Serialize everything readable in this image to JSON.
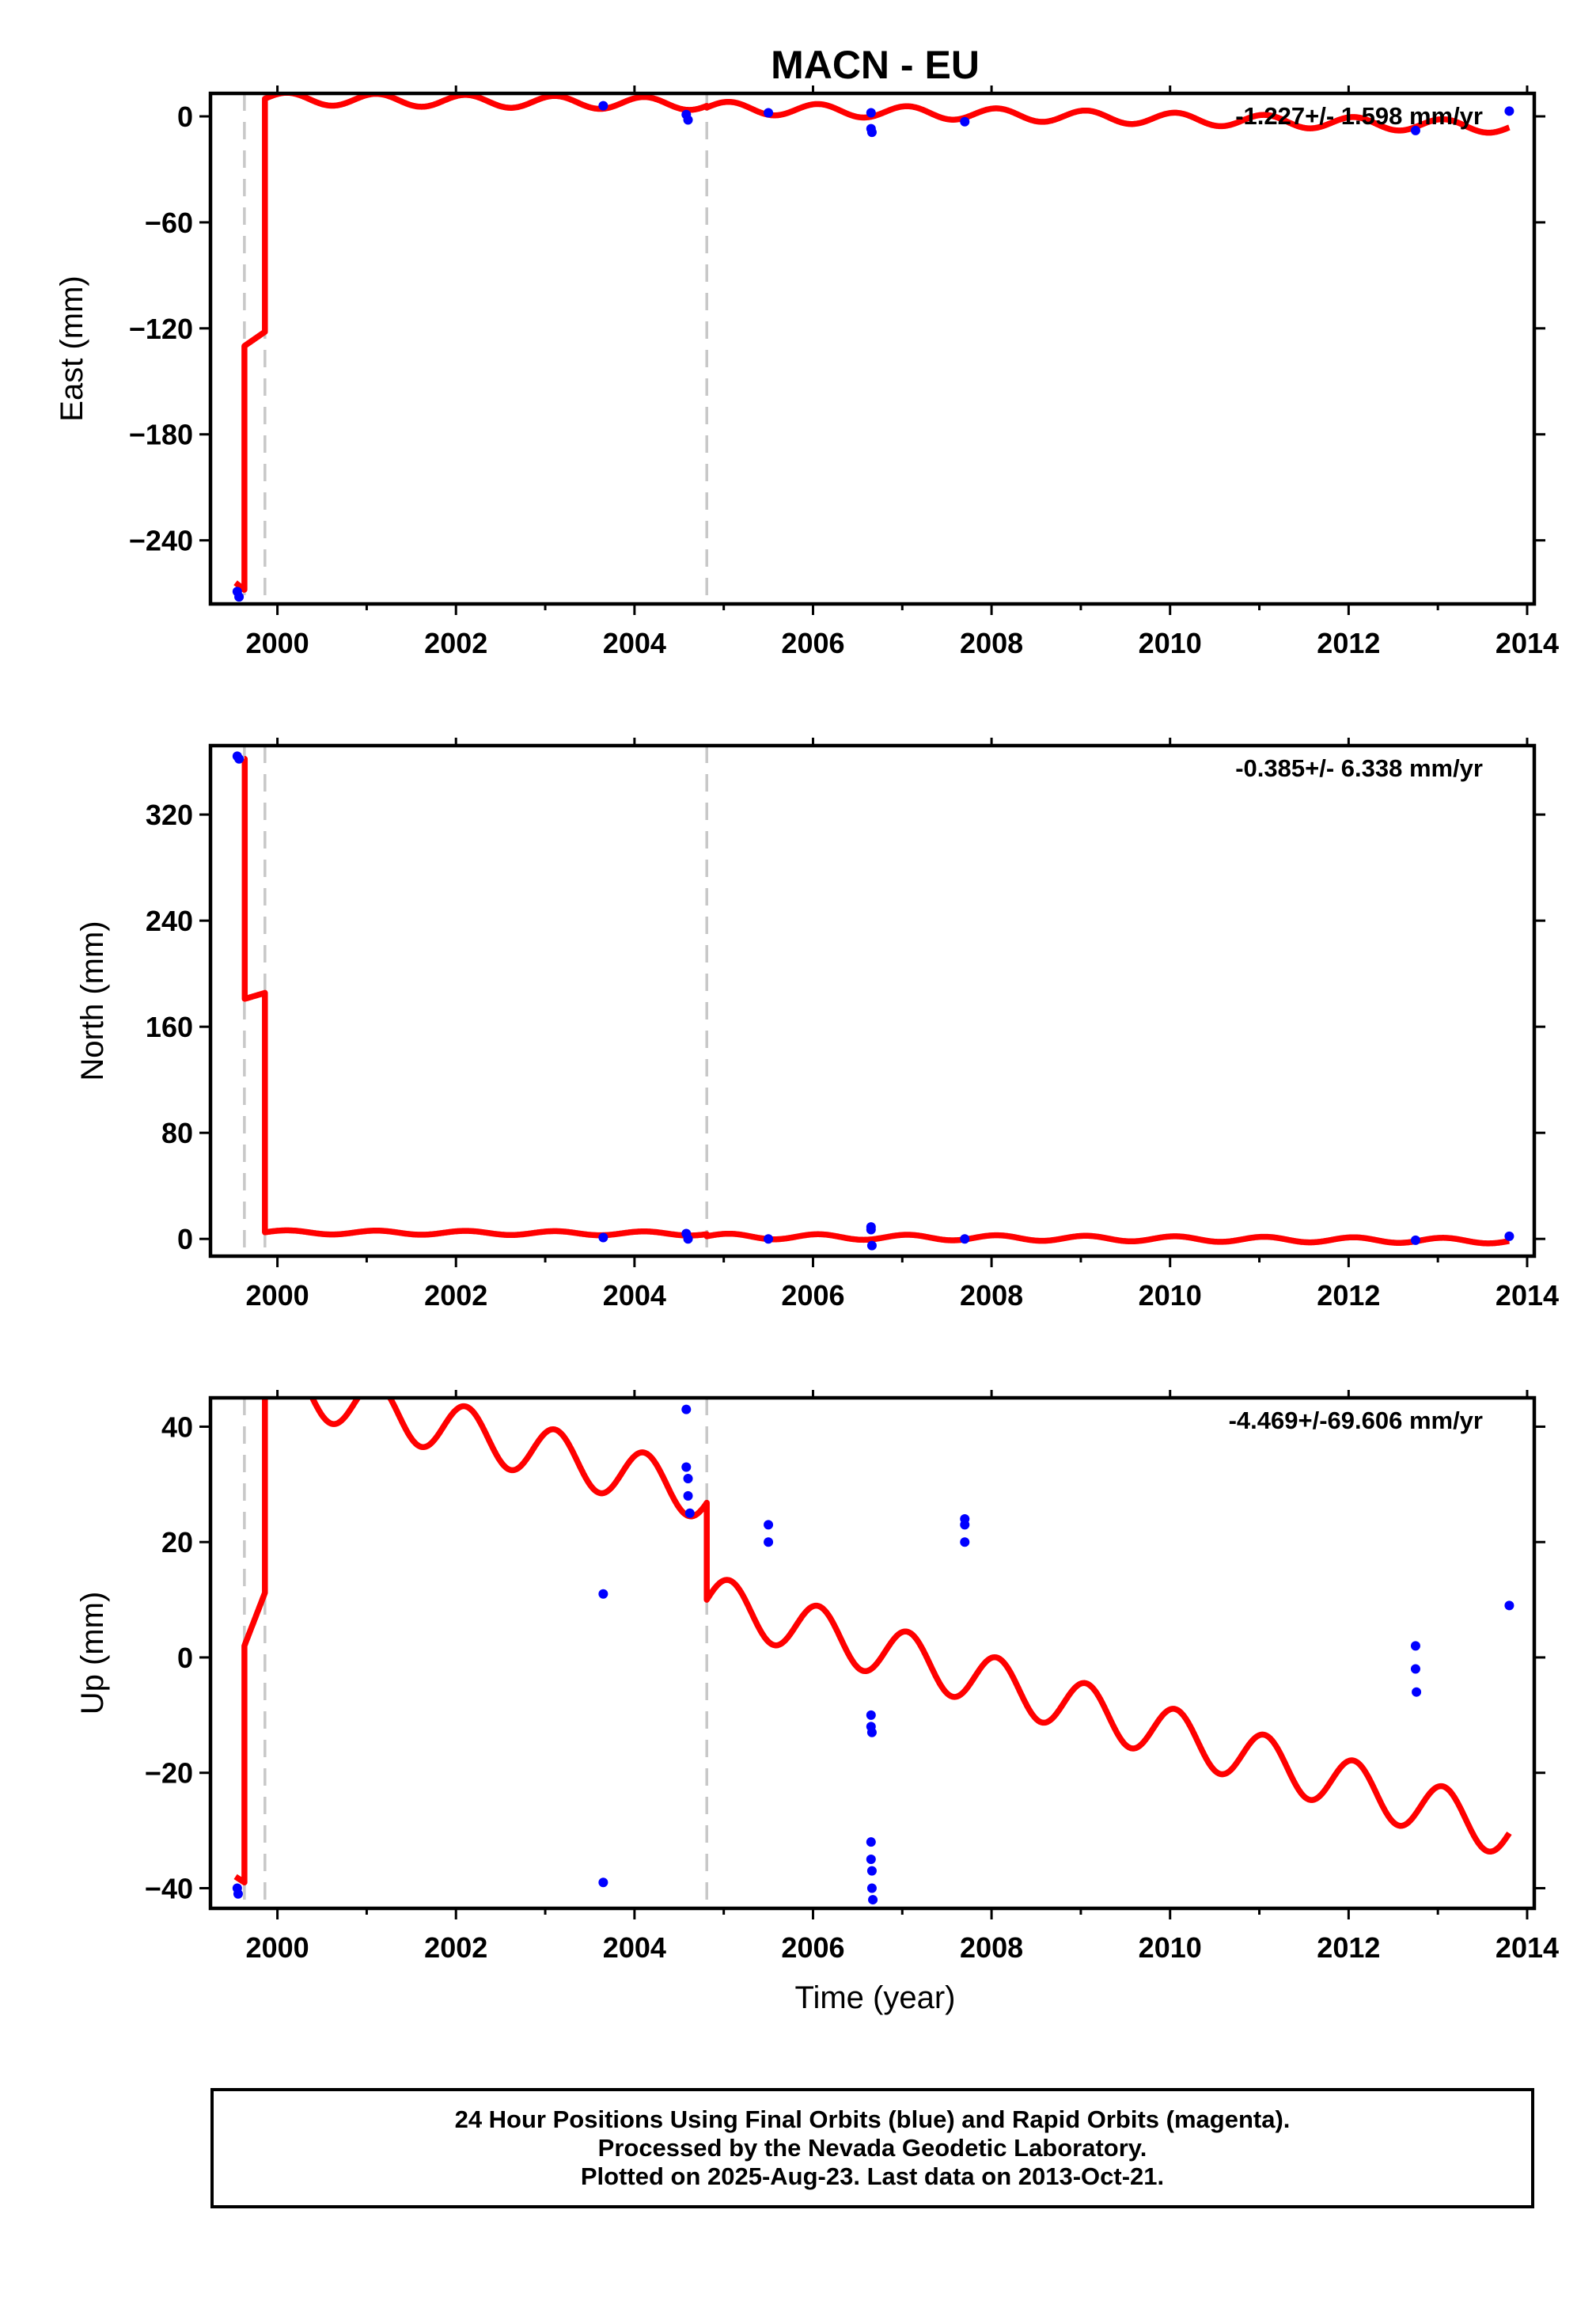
{
  "chart_data": {
    "type": "line",
    "title": "MACN - EU",
    "xlabel": "Time (year)",
    "x_ticks": [
      2000,
      2002,
      2004,
      2006,
      2008,
      2010,
      2012,
      2014
    ],
    "xlim": [
      1999.25,
      2014.08
    ],
    "breaks": [
      1999.63,
      1999.86,
      2004.81
    ],
    "panels": [
      {
        "ylabel": "East (mm)",
        "rate": "-1.227+/- 1.598 mm/yr",
        "ylim": [
          -276,
          13
        ],
        "y_ticks": [
          0,
          -60,
          -120,
          -180,
          -240
        ],
        "points": [
          [
            1999.55,
            -269
          ],
          [
            1999.57,
            -272
          ],
          [
            2003.65,
            6
          ],
          [
            2004.58,
            1
          ],
          [
            2004.6,
            -2
          ],
          [
            2005.5,
            2
          ],
          [
            2006.65,
            2
          ],
          [
            2006.65,
            -7
          ],
          [
            2006.66,
            -9
          ],
          [
            2007.7,
            -3
          ],
          [
            2012.75,
            -8
          ],
          [
            2013.8,
            3
          ]
        ],
        "model": {
          "segments": [
            {
              "x0": 1999.53,
              "x1": 1999.63,
              "start": -264,
              "slope": -40,
              "amp": 0,
              "phase": 0
            },
            {
              "x0": 1999.63,
              "x1": 1999.86,
              "start": -130,
              "slope": 35,
              "amp": 0,
              "phase": 0
            },
            {
              "x0": 1999.86,
              "x1": 2004.81,
              "start": 10,
              "slope": -0.6,
              "amp": 3.5,
              "phase": 0
            },
            {
              "x0": 2004.81,
              "x1": 2013.8,
              "start": 5,
              "slope": -1.227,
              "amp": 3.5,
              "phase": 0
            }
          ]
        }
      },
      {
        "ylabel": "North (mm)",
        "rate": "-0.385+/- 6.338 mm/yr",
        "ylim": [
          -13,
          372
        ],
        "y_ticks": [
          0,
          80,
          160,
          240,
          320
        ],
        "points": [
          [
            1999.55,
            364
          ],
          [
            1999.57,
            362
          ],
          [
            2003.65,
            1
          ],
          [
            2004.58,
            4
          ],
          [
            2004.6,
            0
          ],
          [
            2005.5,
            0
          ],
          [
            2006.65,
            9
          ],
          [
            2006.65,
            7
          ],
          [
            2006.66,
            -5
          ],
          [
            2007.7,
            0
          ],
          [
            2012.75,
            -1
          ],
          [
            2013.8,
            2
          ]
        ],
        "model": {
          "segments": [
            {
              "x0": 1999.63,
              "x1": 1999.634,
              "start": 362,
              "slope": 0,
              "amp": 0,
              "phase": 0
            },
            {
              "x0": 1999.634,
              "x1": 1999.86,
              "start": 181,
              "slope": 20,
              "amp": 0,
              "phase": 0
            },
            {
              "x0": 1999.86,
              "x1": 2004.81,
              "start": 5,
              "slope": -0.2,
              "amp": 1.5,
              "phase": 0
            },
            {
              "x0": 2004.81,
              "x1": 2013.8,
              "start": 2,
              "slope": -0.385,
              "amp": 2,
              "phase": 0
            }
          ]
        }
      },
      {
        "ylabel": "Up (mm)",
        "rate": "-4.469+/-69.606 mm/yr",
        "ylim": [
          -43.5,
          45
        ],
        "y_ticks": [
          40,
          20,
          0,
          -20,
          -40
        ],
        "points": [
          [
            1999.55,
            -40
          ],
          [
            1999.56,
            -41
          ],
          [
            2003.65,
            11
          ],
          [
            2003.65,
            -39
          ],
          [
            2004.58,
            43
          ],
          [
            2004.58,
            33
          ],
          [
            2004.6,
            31
          ],
          [
            2004.6,
            28
          ],
          [
            2004.62,
            25
          ],
          [
            2005.5,
            23
          ],
          [
            2005.5,
            20
          ],
          [
            2006.65,
            -10
          ],
          [
            2006.65,
            -12
          ],
          [
            2006.66,
            -13
          ],
          [
            2006.65,
            -32
          ],
          [
            2006.65,
            -35
          ],
          [
            2006.66,
            -37
          ],
          [
            2006.66,
            -40
          ],
          [
            2006.67,
            -42
          ],
          [
            2007.7,
            24
          ],
          [
            2007.7,
            23
          ],
          [
            2007.7,
            20
          ],
          [
            2012.75,
            2
          ],
          [
            2012.75,
            -2
          ],
          [
            2012.76,
            -6
          ],
          [
            2013.8,
            9
          ]
        ],
        "model": {
          "segments": [
            {
              "x0": 1999.53,
              "x1": 1999.63,
              "start": -38,
              "slope": -10,
              "amp": 0,
              "phase": 0
            },
            {
              "x0": 1999.63,
              "x1": 1999.86,
              "start": 2,
              "slope": 40,
              "amp": 0,
              "phase": 0
            },
            {
              "x0": 1999.86,
              "x1": 2004.81,
              "start": 48,
              "slope": -4.0,
              "amp": 4.5,
              "phase": 0
            },
            {
              "x0": 2004.81,
              "x1": 2013.8,
              "start": 10,
              "slope": -4.469,
              "amp": 4.5,
              "phase": 0
            }
          ]
        }
      }
    ]
  },
  "footer": {
    "line1": "24 Hour Positions Using Final Orbits (blue) and Rapid Orbits (magenta).",
    "line2": "Processed by the Nevada Geodetic Laboratory.",
    "line3": "Plotted on 2025-Aug-23. Last data on 2013-Oct-21."
  },
  "colors": {
    "model": "#ff0000",
    "points": "#0000ff",
    "breaks": "#c8c8c8"
  }
}
